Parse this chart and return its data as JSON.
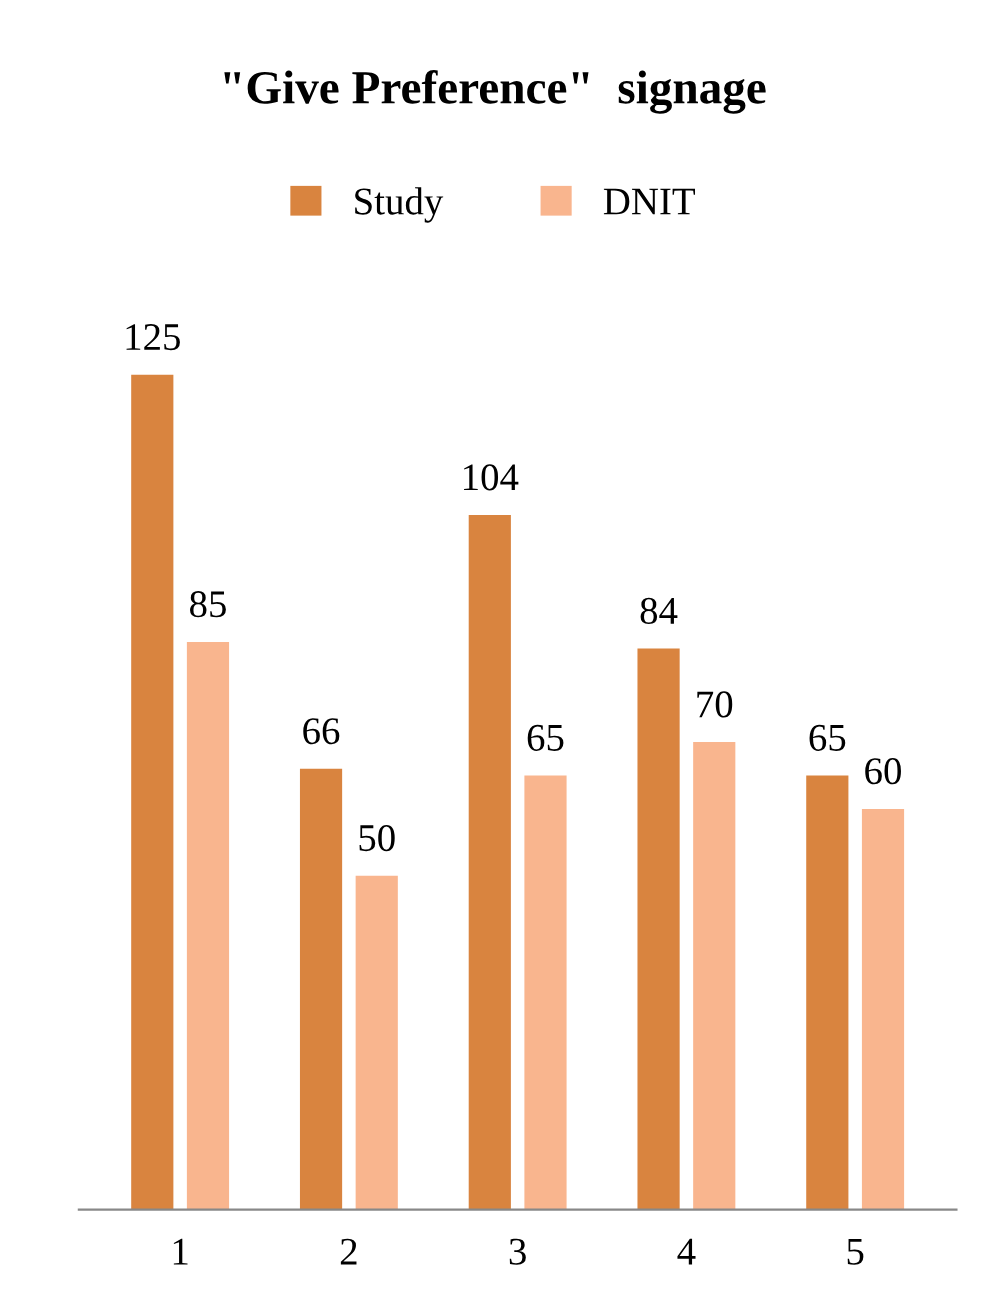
{
  "chart_data": {
    "type": "bar",
    "title": "\"Give Preference\"  signage",
    "categories": [
      "1",
      "2",
      "3",
      "4",
      "5"
    ],
    "series": [
      {
        "name": "Study",
        "color": "#d9843f",
        "values": [
          125,
          66,
          104,
          84,
          65
        ]
      },
      {
        "name": "DNIT",
        "color": "#f9b58e",
        "values": [
          85,
          50,
          65,
          70,
          60
        ]
      }
    ],
    "data_labels": true,
    "legend": "top",
    "grid": false
  }
}
